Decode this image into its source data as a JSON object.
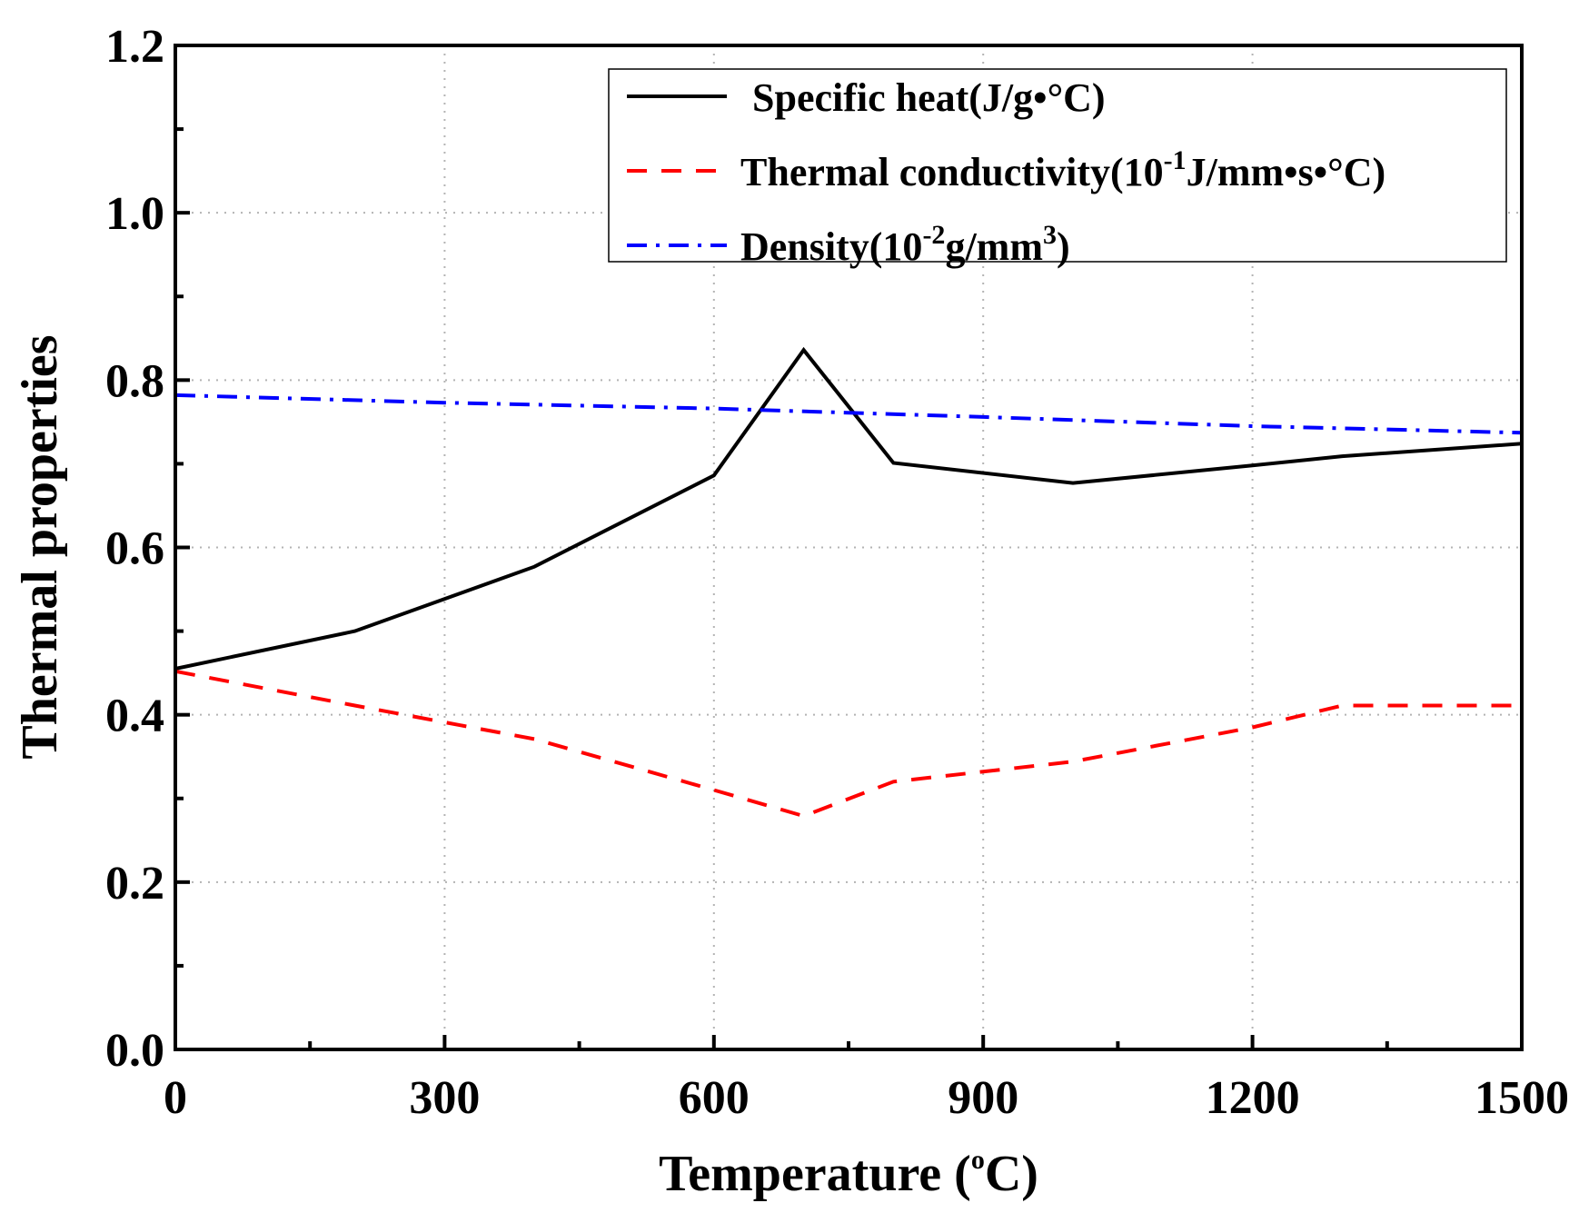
{
  "chart_data": {
    "type": "line",
    "title": "",
    "xlabel": {
      "prefix": "Temperature (",
      "sup": "o",
      "suffix": "C)"
    },
    "ylabel": "Thermal properties",
    "xlim": [
      0,
      1500
    ],
    "ylim": [
      0,
      1.2
    ],
    "xticks": [
      0,
      300,
      600,
      900,
      1200,
      1500
    ],
    "xtick_labels": [
      "0",
      "300",
      "600",
      "900",
      "1200",
      "1500"
    ],
    "yticks": [
      0.0,
      0.2,
      0.4,
      0.6,
      0.8,
      1.0,
      1.2
    ],
    "ytick_labels": [
      "0.0",
      "0.2",
      "0.4",
      "0.6",
      "0.8",
      "1.0",
      "1.2"
    ],
    "grid": true,
    "legend_position": "top-right",
    "series": [
      {
        "name": "Specific heat(J/g•°C)",
        "legend": {
          "pre": "Specific heat(J/g•°C)",
          "sup1": "",
          "mid": "",
          "sup2": "",
          "post": ""
        },
        "color": "#000000",
        "style": "solid",
        "x": [
          0,
          200,
          400,
          600,
          700,
          800,
          1000,
          1200,
          1300,
          1500
        ],
        "y": [
          0.455,
          0.5,
          0.577,
          0.686,
          0.836,
          0.701,
          0.677,
          0.698,
          0.709,
          0.724
        ]
      },
      {
        "name": "Thermal conductivity(10-1J/mm•s•°C)",
        "legend": {
          "pre": "Thermal conductivity(10",
          "sup1": "-1",
          "mid": "J/mm•s•°C)",
          "sup2": "",
          "post": ""
        },
        "color": "#ff0000",
        "style": "dash",
        "x": [
          0,
          200,
          400,
          600,
          700,
          800,
          1000,
          1200,
          1300,
          1500
        ],
        "y": [
          0.452,
          0.411,
          0.371,
          0.31,
          0.279,
          0.32,
          0.344,
          0.385,
          0.411,
          0.411
        ]
      },
      {
        "name": "Density(10-2g/mm3)",
        "legend": {
          "pre": "Density(10",
          "sup1": "-2",
          "mid": "g/mm",
          "sup2": "3",
          "post": ")"
        },
        "color": "#0000ff",
        "style": "dashdot",
        "x": [
          0,
          300,
          600,
          900,
          1200,
          1500
        ],
        "y": [
          0.782,
          0.773,
          0.766,
          0.756,
          0.745,
          0.737
        ]
      }
    ]
  }
}
